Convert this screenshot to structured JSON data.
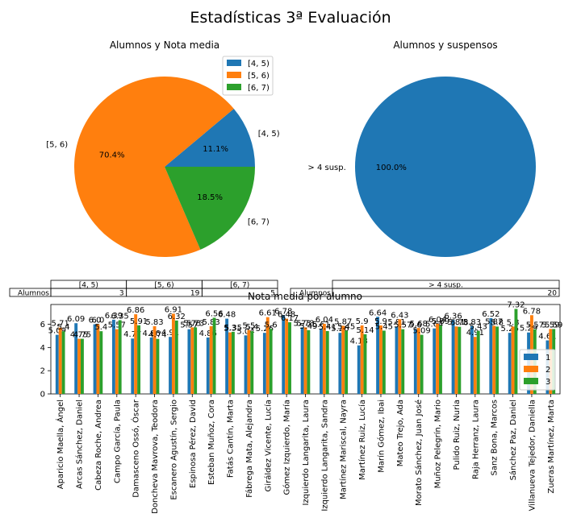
{
  "suptitle": "Estadísticas 3ª Evaluación",
  "colors": {
    "c1": "#1f77b4",
    "c2": "#ff7f0e",
    "c3": "#2ca02c",
    "axis": "#000000"
  },
  "chart_data": [
    {
      "type": "pie",
      "title": "Alumnos y Nota media",
      "labels": [
        "[4, 5)",
        "[5, 6)",
        "[6, 7)"
      ],
      "values": [
        3,
        19,
        5
      ],
      "percent_labels": [
        "11.1%",
        "70.4%",
        "18.5%"
      ],
      "legend": [
        "[4, 5)",
        "[5, 6)",
        "[6, 7)"
      ],
      "legend_position": "upper-right",
      "table": {
        "row_label": "Alumnos",
        "columns": [
          "[4, 5)",
          "[5, 6)",
          "[6, 7)"
        ],
        "values": [
          "3",
          "19",
          "5"
        ]
      }
    },
    {
      "type": "pie",
      "title": "Alumnos y suspensos",
      "labels": [
        "> 4 susp."
      ],
      "values": [
        20
      ],
      "percent_labels": [
        "100.0%"
      ],
      "table": {
        "row_label": "Alumnos",
        "columns": [
          "> 4 susp."
        ],
        "values": [
          "20"
        ]
      }
    },
    {
      "type": "bar",
      "title": "Nota media por alumno",
      "categories": [
        "Aparicio Maella, Ángel",
        "Arcas Sánchez, Daniel",
        "Cabeza Roche, Andrea",
        "Campo García, Paula",
        "Damasceno Ossó, Óscar",
        "Doncheva Mavrova, Teodora",
        "Escanero Agustín, Sergio",
        "Espinosa Pérez, David",
        "Esteban Muñoz, Cora",
        "Fatás Cantín, Marta",
        "Fábrega Mata, Alejandra",
        "Giráldez Vicente, Lucía",
        "Gómez Izquierdo, María",
        "Izquierdo Langarita, Laura",
        "Izquierdo Langarita, Sandra",
        "Martínez Mariscal, Nayra",
        "Martínez Ruiz, Lucía",
        "Marín Gómez, Ibai",
        "Mateo Trejo, Ada",
        "Morato Sánchez, Juan José",
        "Muñoz Pelegrín, Mario",
        "Pulido Ruiz, Nuria",
        "Raja Herranz, Laura",
        "Sanz Bona, Marcos",
        "Sánchez Paz, Daniel",
        "Villanueva Tejedor, Daniella",
        "Zueras Martínez, Marta"
      ],
      "series": [
        {
          "name": "1",
          "values": [
            5.09,
            6.09,
            6.0,
            6.39,
            4.77,
            4.86,
            4.91,
            5.57,
            4.86,
            6.48,
            5.04,
            5.26,
            6.78,
            5.73,
            5.61,
            5.26,
            4.18,
            6.64,
            5.81,
            5.6,
            5.64,
            6.36,
            5.83,
            6.52,
            5.26,
            5.29,
            4.61
          ]
        },
        {
          "name": "2",
          "values": [
            5.71,
            4.75,
            6.0,
            5.57,
            6.86,
            5.83,
            6.91,
            5.73,
            5.83,
            5.3,
            5.5,
            6.61,
            6.48,
            5.73,
            6.04,
            5.87,
            5.9,
            5.9,
            6.43,
            5.68,
            6.04,
            5.81,
            4.91,
            5.87,
            5.8,
            6.78,
            5.59
          ]
        },
        {
          "name": "3",
          "values": [
            5.4,
            4.75,
            5.4,
            6.35,
            5.91,
            4.74,
            6.32,
            5.73,
            6.56,
            5.35,
            5.4,
            5.6,
            6.17,
            5.49,
            5.41,
            5.45,
            5.14,
            5.45,
            5.57,
            5.09,
            5.89,
            5.78,
            5.43,
            5.8,
            7.32,
            5.57,
            5.59
          ]
        }
      ],
      "data_labels": [
        [
          "5.09",
          "6.09",
          "6.0",
          "6.39",
          "4.77",
          "4.86",
          "4.91",
          "5.57",
          "4.86",
          "6.48",
          "5.04",
          "5.26",
          "6.78",
          "5.73",
          "5.61",
          "5.26",
          "4.18",
          "6.64",
          "5.81",
          "5.6",
          "5.64",
          "6.36",
          "5.83",
          "6.52",
          "5.26",
          "5.29",
          "4.61"
        ],
        [
          "5.71",
          "4.75",
          "6.0",
          "5.57",
          "6.86",
          "5.83",
          "6.91",
          "5.73",
          "5.83",
          "5.3",
          "5.5",
          "6.61",
          "6.48",
          "5.73",
          "6.04",
          "5.87",
          "5.9",
          "5.9",
          "6.43",
          "5.68",
          "6.04",
          "5.81",
          "4.91",
          "5.87",
          "5.8",
          "6.78",
          "5.59"
        ],
        [
          "5.4",
          "4.75",
          "5.4",
          "6.35",
          "5.91",
          "4.74",
          "6.32",
          "5.73",
          "6.56",
          "5.35",
          "5.4",
          "5.6",
          "6.17",
          "5.49",
          "5.41",
          "5.45",
          "5.14",
          "5.45",
          "5.57",
          "5.09",
          "5.89",
          "5.78",
          "5.43",
          "5.8",
          "7.32",
          "5.57",
          "5.59"
        ]
      ],
      "ylim": [
        0,
        7.7
      ],
      "yticks": [
        "0",
        "2",
        "4",
        "6"
      ],
      "legend": [
        "1",
        "2",
        "3"
      ],
      "legend_position": "right"
    }
  ]
}
